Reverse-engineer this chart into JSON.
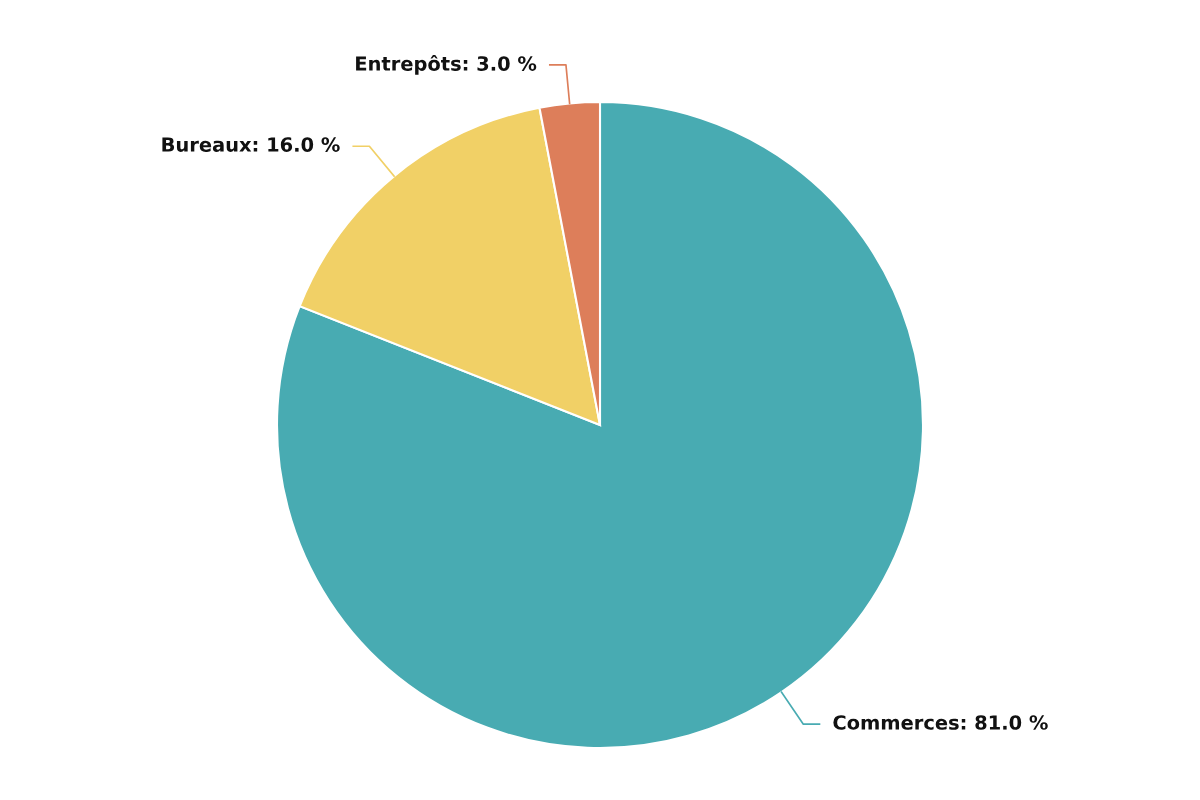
{
  "chart_data": {
    "type": "pie",
    "categories": [
      "Commerces",
      "Bureaux",
      "Entrepôts"
    ],
    "values": [
      81.0,
      16.0,
      3.0
    ],
    "value_labels": [
      "81.0 %",
      "16.0 %",
      "3.0 %"
    ],
    "colors": [
      "#48abb2",
      "#f1d066",
      "#dd7e5a"
    ],
    "legend": false
  }
}
